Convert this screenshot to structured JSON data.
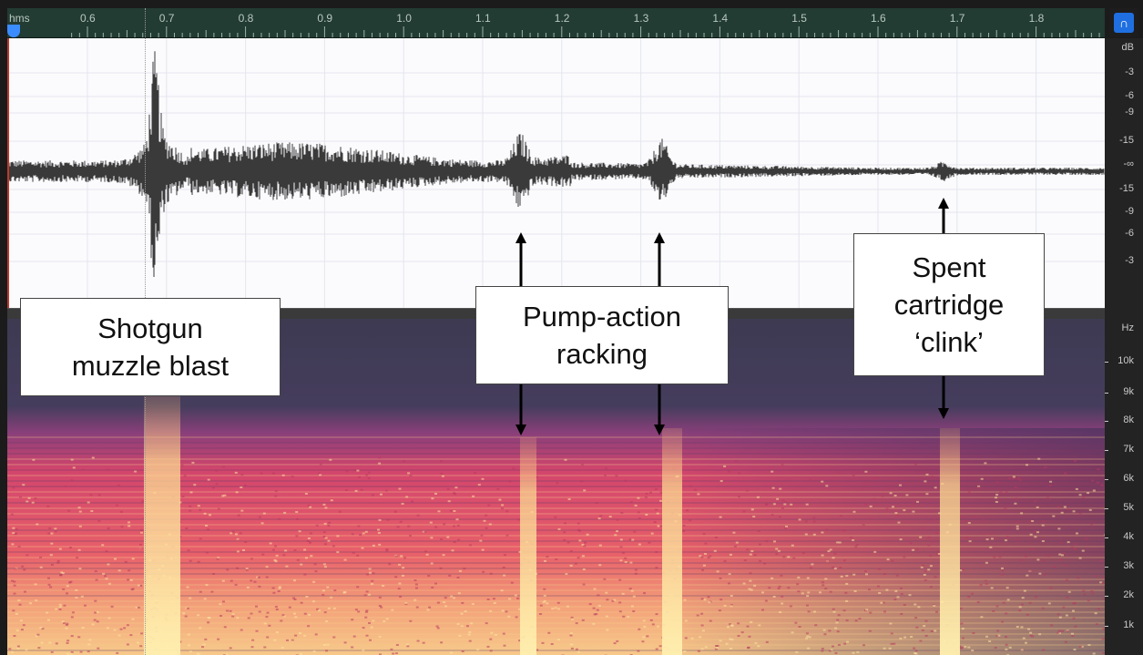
{
  "ruler": {
    "unit_label": "hms",
    "ticks": [
      "0.6",
      "0.7",
      "0.8",
      "0.9",
      "1.0",
      "1.1",
      "1.2",
      "1.3",
      "1.4",
      "1.5",
      "1.6",
      "1.7",
      "1.8"
    ]
  },
  "toolbar": {
    "magnet_icon": "magnet-icon"
  },
  "db_scale": {
    "unit": "dB",
    "labels": [
      "-3",
      "-6",
      "-9",
      "-15",
      "-∞",
      "-15",
      "-9",
      "-6",
      "-3"
    ]
  },
  "hz_scale": {
    "unit": "Hz",
    "labels": [
      "10k",
      "9k",
      "8k",
      "7k",
      "6k",
      "5k",
      "4k",
      "3k",
      "2k",
      "1k"
    ]
  },
  "annotations": {
    "muzzle": {
      "line1": "Shotgun",
      "line2": "muzzle blast"
    },
    "pump": {
      "line1": "Pump-action",
      "line2": "racking"
    },
    "clink": {
      "line1": "Spent",
      "line2": "cartridge",
      "line3": "‘clink’"
    }
  },
  "colors": {
    "ruler_bg": "#223b33",
    "waveform": "#3a3a3a",
    "spectrogram_low": "#3d3a55",
    "spectrogram_mid": "#e0486a",
    "spectrogram_high": "#fff1a8",
    "accent": "#1f6fe0"
  }
}
